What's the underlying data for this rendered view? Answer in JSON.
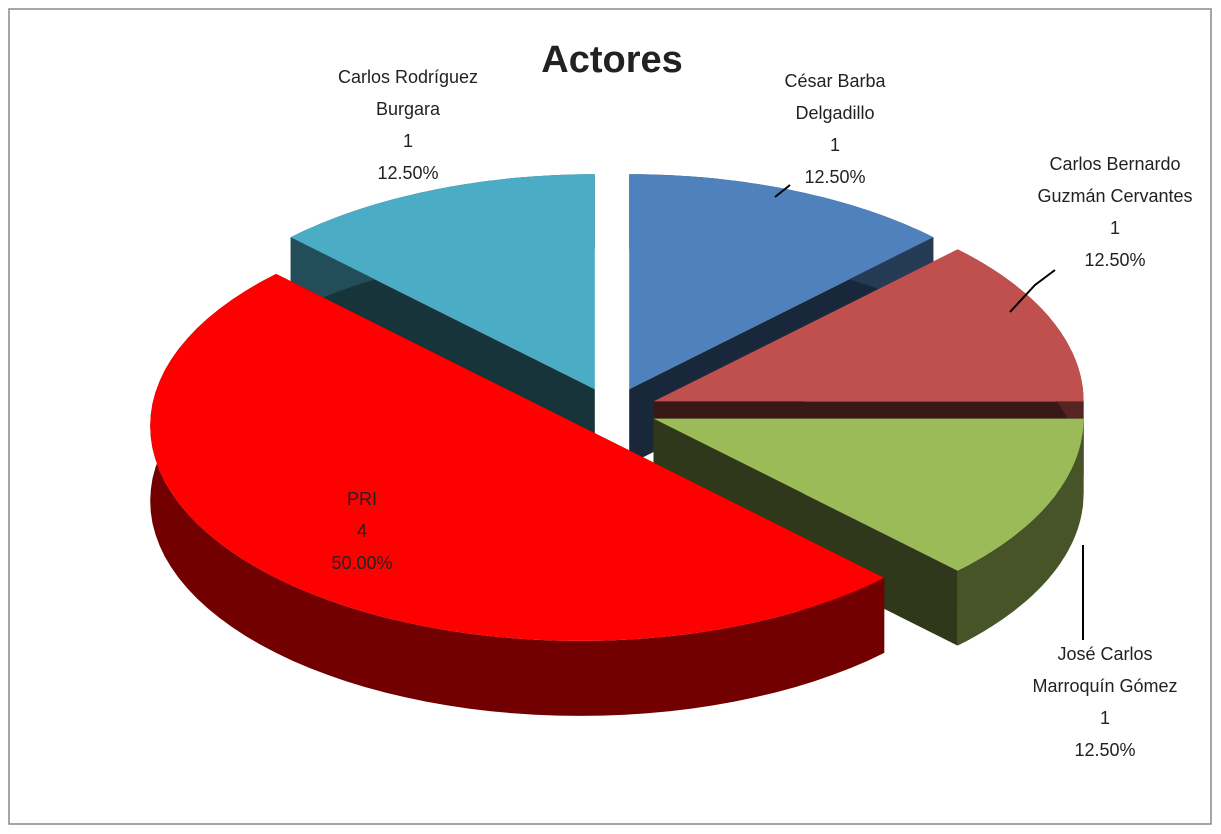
{
  "chart_data": {
    "type": "pie",
    "title": "Actores",
    "categories": [
      "César Barba Delgadillo",
      "Carlos Bernardo Guzmán Cervantes",
      "José Carlos Marroquín Gómez",
      "PRI",
      "Carlos Rodríguez Burgara"
    ],
    "values": [
      1,
      1,
      1,
      4,
      1
    ],
    "percent_labels": [
      "12.50%",
      "12.50%",
      "12.50%",
      "50.00%",
      "12.50%"
    ],
    "colors": [
      "#4f81bd",
      "#c0504d",
      "#9bbb59",
      "#ff0000",
      "#4bacc6"
    ]
  }
}
